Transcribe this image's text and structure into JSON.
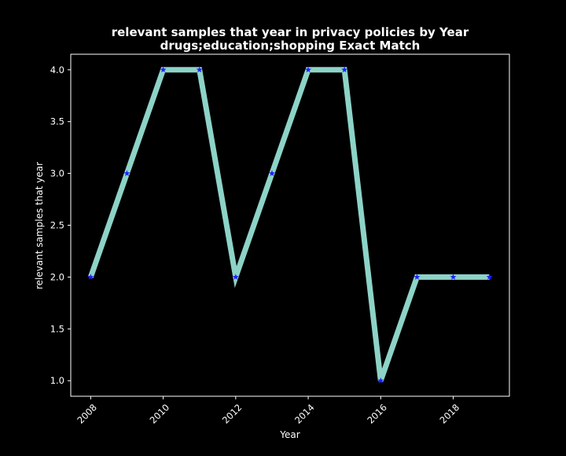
{
  "chart_data": {
    "type": "line",
    "title_line1": "relevant samples that year in privacy policies by Year",
    "title_line2": "drugs;education;shopping Exact Match",
    "xlabel": "Year",
    "ylabel": "relevant samples that year",
    "x": [
      2008,
      2009,
      2010,
      2011,
      2012,
      2013,
      2014,
      2015,
      2016,
      2017,
      2018,
      2019
    ],
    "y": [
      2,
      3,
      4,
      4,
      2,
      3,
      4,
      4,
      1,
      2,
      2,
      2
    ],
    "xlim": [
      2007.45,
      2019.55
    ],
    "ylim": [
      0.85,
      4.15
    ],
    "x_ticks": [
      2008,
      2010,
      2012,
      2014,
      2016,
      2018
    ],
    "y_ticks": [
      1.0,
      1.5,
      2.0,
      2.5,
      3.0,
      3.5,
      4.0
    ],
    "grid": false,
    "line_color": "#8dd3c7",
    "marker_color": "#1f1fff",
    "marker": "star",
    "background_color": "#000000",
    "axes_color": "#ffffff"
  }
}
